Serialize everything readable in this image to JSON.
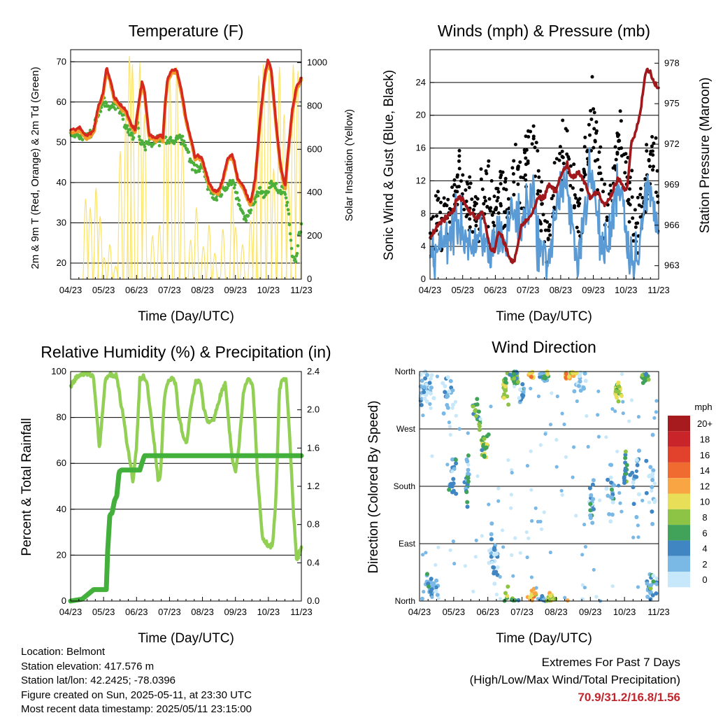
{
  "x_ticks": [
    "04/23",
    "05/23",
    "06/23",
    "07/23",
    "08/23",
    "09/23",
    "10/23",
    "11/23"
  ],
  "x_label": "Time (Day/UTC)",
  "colors": {
    "t2m": "#d62a1e",
    "t9m": "#f39b2a",
    "td": "#4caf3c",
    "solar": "#fbe36b",
    "gust": "#000000",
    "wind": "#5b9bd5",
    "pressure": "#a0181c",
    "rh": "#92cf55",
    "precip": "#43b03c",
    "extremes": "#c0272d"
  },
  "panels": {
    "temperature": {
      "title": "Temperature (F)",
      "ylabel_left": "2m & 9m T (Red, Orange) & 2m Td (Green)",
      "ylabel_right": "Solar Insolation (Yellow)"
    },
    "winds": {
      "title": "Winds (mph) & Pressure (mb)",
      "ylabel_left": "Sonic Wind & Gust (Blue, Black)",
      "ylabel_right": "Station Pressure (Maroon)"
    },
    "humidity": {
      "title": "Relative Humidity (%) & Precipitation (in)",
      "ylabel_left": "Percent & Total Rainfall"
    },
    "direction": {
      "title": "Wind Direction",
      "ylabel_left": "Direction (Colored By Speed)",
      "legend_title": "mph"
    }
  },
  "chart_data": [
    {
      "type": "line",
      "title": "Temperature (F)",
      "x": [
        "04/23",
        "05/23",
        "06/23",
        "07/23",
        "08/23",
        "09/23",
        "10/23",
        "11/23"
      ],
      "ylim": [
        16,
        73
      ],
      "y_ticks": [
        20,
        30,
        40,
        50,
        60,
        70
      ],
      "ylim_right": [
        0,
        1060
      ],
      "y_ticks_right": [
        0,
        200,
        400,
        600,
        800,
        1000
      ],
      "series": [
        {
          "values": [
            53,
            69,
            51,
            68,
            39,
            47,
            70,
            66
          ]
        },
        {
          "values": [
            52,
            68,
            52,
            67,
            40,
            46,
            69,
            65
          ]
        },
        {
          "values": [
            52,
            59,
            50,
            51,
            37,
            36,
            38,
            23
          ]
        },
        {
          "values": [
            0,
            480,
            1000,
            980,
            330,
            420,
            980,
            980
          ]
        }
      ]
    },
    {
      "type": "line",
      "title": "Winds (mph) & Pressure (mb)",
      "x": [
        "04/23",
        "05/23",
        "06/23",
        "07/23",
        "08/23",
        "09/23",
        "10/23",
        "11/23"
      ],
      "ylim": [
        0,
        28
      ],
      "y_ticks": [
        0,
        4,
        8,
        12,
        16,
        20,
        24
      ],
      "ylim_right": [
        962,
        979
      ],
      "y_ticks_right": [
        963,
        966,
        969,
        972,
        975,
        978
      ],
      "series": [
        {
          "values": [
            6,
            14,
            12,
            18,
            16,
            25,
            18,
            14
          ]
        },
        {
          "values": [
            3,
            7,
            5,
            8,
            9,
            12,
            8,
            8
          ]
        },
        {
          "values": [
            965,
            968,
            964,
            967,
            971,
            968,
            969,
            976
          ]
        }
      ]
    },
    {
      "type": "line",
      "title": "Relative Humidity (%) & Precipitation (in)",
      "x": [
        "04/23",
        "05/23",
        "06/23",
        "07/23",
        "08/23",
        "09/23",
        "10/23",
        "11/23"
      ],
      "ylim": [
        0,
        100
      ],
      "y_ticks": [
        0,
        20,
        40,
        60,
        80,
        100
      ],
      "ylim_right": [
        0,
        2.4
      ],
      "y_ticks_right": [
        "0.0",
        "0.4",
        "0.8",
        "1.2",
        "1.6",
        "2.0",
        "2.4"
      ],
      "series": [
        {
          "values": [
            95,
            98,
            55,
            95,
            80,
            95,
            25,
            22
          ]
        },
        {
          "values": [
            0.0,
            0.12,
            1.38,
            1.52,
            1.52,
            1.52,
            1.52,
            1.52
          ]
        }
      ]
    },
    {
      "type": "scatter",
      "title": "Wind Direction",
      "x": [
        "04/23",
        "05/23",
        "06/23",
        "07/23",
        "08/23",
        "09/23",
        "10/23",
        "11/23"
      ],
      "y_ticks": [
        "North",
        "East",
        "South",
        "West",
        "North"
      ],
      "legend": [
        "20+",
        "18",
        "16",
        "14",
        "12",
        "10",
        "8",
        "6",
        "4",
        "2",
        "0"
      ],
      "legend_colors": [
        "#a71b1f",
        "#c8242a",
        "#e2412c",
        "#f06b30",
        "#f9a543",
        "#e9de57",
        "#8ec446",
        "#41a25a",
        "#3f86c2",
        "#7ab8e6",
        "#c7e8fa"
      ]
    }
  ],
  "info": {
    "location": "Location: Belmont",
    "elevation": "Station elevation: 417.576 m",
    "latlon": "Station lat/lon: 42.2425; -78.0396",
    "created": "Figure created on Sun, 2025-05-11, at 23:30 UTC",
    "recent": "Most recent data timestamp: 2025/05/11 23:15:00"
  },
  "extremes": {
    "line1": "Extremes For Past 7 Days",
    "line2": "(High/Low/Max Wind/Total Precipitation)",
    "values": "70.9/31.2/16.8/1.56"
  }
}
